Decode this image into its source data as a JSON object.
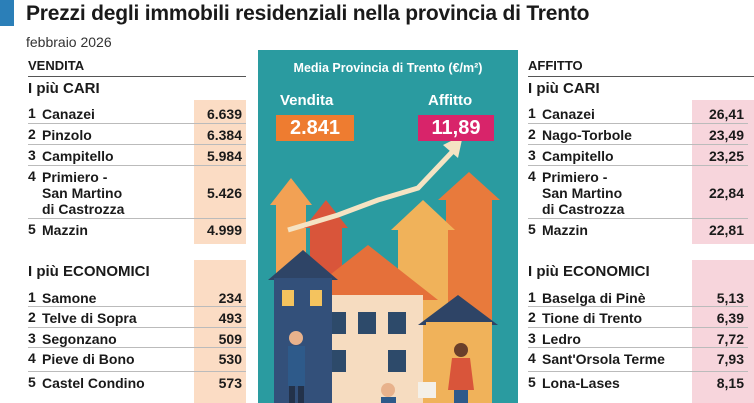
{
  "header": {
    "title": "Prezzi degli immobili residenziali nella provincia di Trento",
    "date": "febbraio 2026"
  },
  "sale": {
    "section_label": "VENDITA",
    "expensive": {
      "label": "I più CARI",
      "items": [
        {
          "rank": "1",
          "name": "Canazei",
          "value": "6.639"
        },
        {
          "rank": "2",
          "name": "Pinzolo",
          "value": "6.384"
        },
        {
          "rank": "3",
          "name": "Campitello",
          "value": "5.984"
        },
        {
          "rank": "4",
          "name": "Primiero -\nSan Martino\ndi Castrozza",
          "value": "5.426"
        },
        {
          "rank": "5",
          "name": "Mazzin",
          "value": "4.999"
        }
      ]
    },
    "cheap": {
      "label": "I più ECONOMICI",
      "items": [
        {
          "rank": "1",
          "name": "Samone",
          "value": "234"
        },
        {
          "rank": "2",
          "name": "Telve di Sopra",
          "value": "493"
        },
        {
          "rank": "3",
          "name": "Segonzano",
          "value": "509"
        },
        {
          "rank": "4",
          "name": "Pieve di Bono",
          "value": "530"
        },
        {
          "rank": "5",
          "name": "Castel Condino",
          "value": "573"
        }
      ]
    }
  },
  "rent": {
    "section_label": "AFFITTO",
    "expensive": {
      "label": "I più CARI",
      "items": [
        {
          "rank": "1",
          "name": "Canazei",
          "value": "26,41"
        },
        {
          "rank": "2",
          "name": "Nago-Torbole",
          "value": "23,49"
        },
        {
          "rank": "3",
          "name": "Campitello",
          "value": "23,25"
        },
        {
          "rank": "4",
          "name": "Primiero -\nSan Martino\ndi Castrozza",
          "value": "22,84"
        },
        {
          "rank": "5",
          "name": "Mazzin",
          "value": "22,81"
        }
      ]
    },
    "cheap": {
      "label": "I più ECONOMICI",
      "items": [
        {
          "rank": "1",
          "name": "Baselga di Pinè",
          "value": "5,13"
        },
        {
          "rank": "2",
          "name": "Tione di Trento",
          "value": "6,39"
        },
        {
          "rank": "3",
          "name": "Ledro",
          "value": "7,72"
        },
        {
          "rank": "4",
          "name": "Sant'Orsola Terme",
          "value": "7,93"
        },
        {
          "rank": "5",
          "name": "Lona-Lases",
          "value": "8,15"
        }
      ]
    }
  },
  "average": {
    "label": "Media Provincia di Trento (€/m²)",
    "sale_label": "Vendita",
    "sale_value": "2.841",
    "rent_label": "Affitto",
    "rent_value": "11,89"
  },
  "colors": {
    "teal_panel": "#2a9ba0",
    "sale_box": "#ee7c30",
    "rent_box": "#d8246a",
    "sale_column_bg": "#fbdcc4",
    "rent_column_bg": "#f7d5dc",
    "accent_blue": "#2b7fb8"
  }
}
